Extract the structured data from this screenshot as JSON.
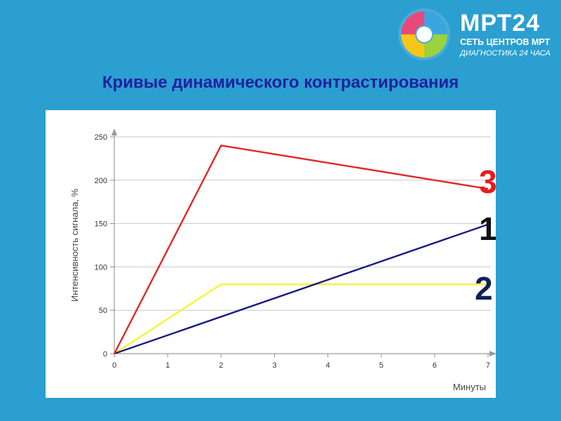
{
  "logo": {
    "brand": "МРТ24",
    "line1": "СЕТЬ ЦЕНТРОВ МРТ",
    "line2": "ДИАГНОСТИКА 24 ЧАСА"
  },
  "slide": {
    "title": "Кривые динамического контрастирования"
  },
  "chart_data": {
    "type": "line",
    "xlabel": "Минуты",
    "ylabel": "Интенсивность сигнала, %",
    "xlim": [
      0,
      7
    ],
    "ylim": [
      0,
      250
    ],
    "xticks": [
      0,
      1,
      2,
      3,
      4,
      5,
      6,
      7
    ],
    "yticks": [
      0,
      50,
      100,
      150,
      200,
      250
    ],
    "grid": "horizontal",
    "series": [
      {
        "label": "3",
        "color": "#e32626",
        "x": [
          0,
          2,
          7
        ],
        "y": [
          0,
          240,
          190
        ]
      },
      {
        "label": "1",
        "color": "#1c1c80",
        "x": [
          0,
          7
        ],
        "y": [
          0,
          149
        ]
      },
      {
        "label": "2",
        "color": "#f5f53a",
        "x": [
          0,
          2,
          7
        ],
        "y": [
          0,
          80,
          80
        ]
      }
    ],
    "series_label_colors": [
      "#e31e1e",
      "#111111",
      "#0e1f5b"
    ]
  }
}
